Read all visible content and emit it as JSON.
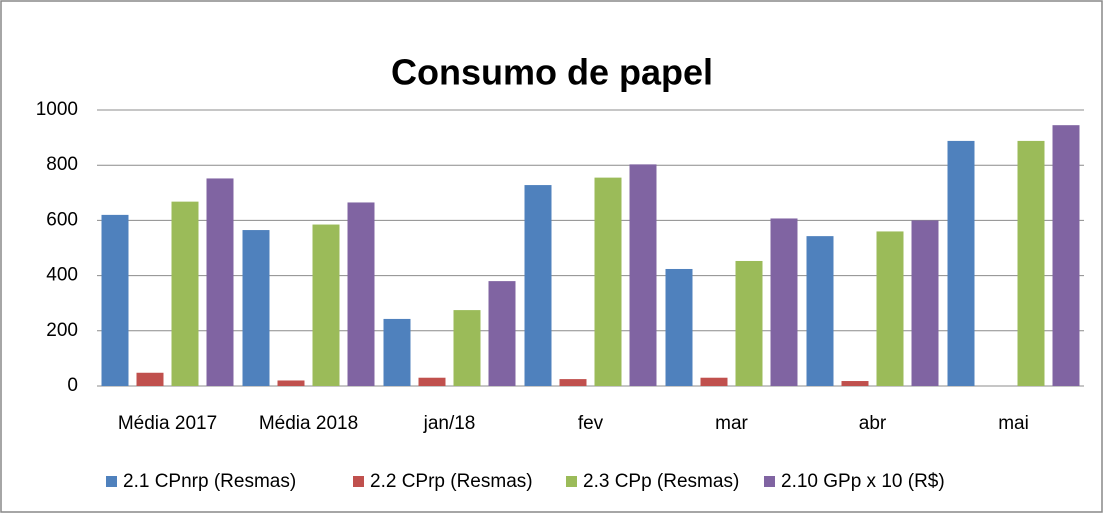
{
  "chart_data": {
    "type": "bar",
    "title": "Consumo de papel",
    "categories": [
      "Média 2017",
      "Média 2018",
      "jan/18",
      "fev",
      "mar",
      "abr",
      "mai"
    ],
    "series": [
      {
        "name": "2.1 CPnrp (Resmas)",
        "color": "#4f81bd",
        "values": [
          620,
          565,
          243,
          728,
          424,
          543,
          888
        ]
      },
      {
        "name": "2.2 CPrp (Resmas)",
        "color": "#c0504d",
        "values": [
          48,
          20,
          30,
          25,
          30,
          18,
          0
        ]
      },
      {
        "name": "2.3 CPp (Resmas)",
        "color": "#9bbb59",
        "values": [
          668,
          585,
          275,
          755,
          453,
          560,
          888
        ]
      },
      {
        "name": "2.10 GPp x 10 (R$)",
        "color": "#8064a2",
        "values": [
          752,
          665,
          380,
          803,
          607,
          600,
          945
        ]
      }
    ],
    "ylim": [
      0,
      1000
    ],
    "yticks": [
      0,
      200,
      400,
      600,
      800,
      1000
    ],
    "grid": true,
    "legend": "bottom"
  }
}
